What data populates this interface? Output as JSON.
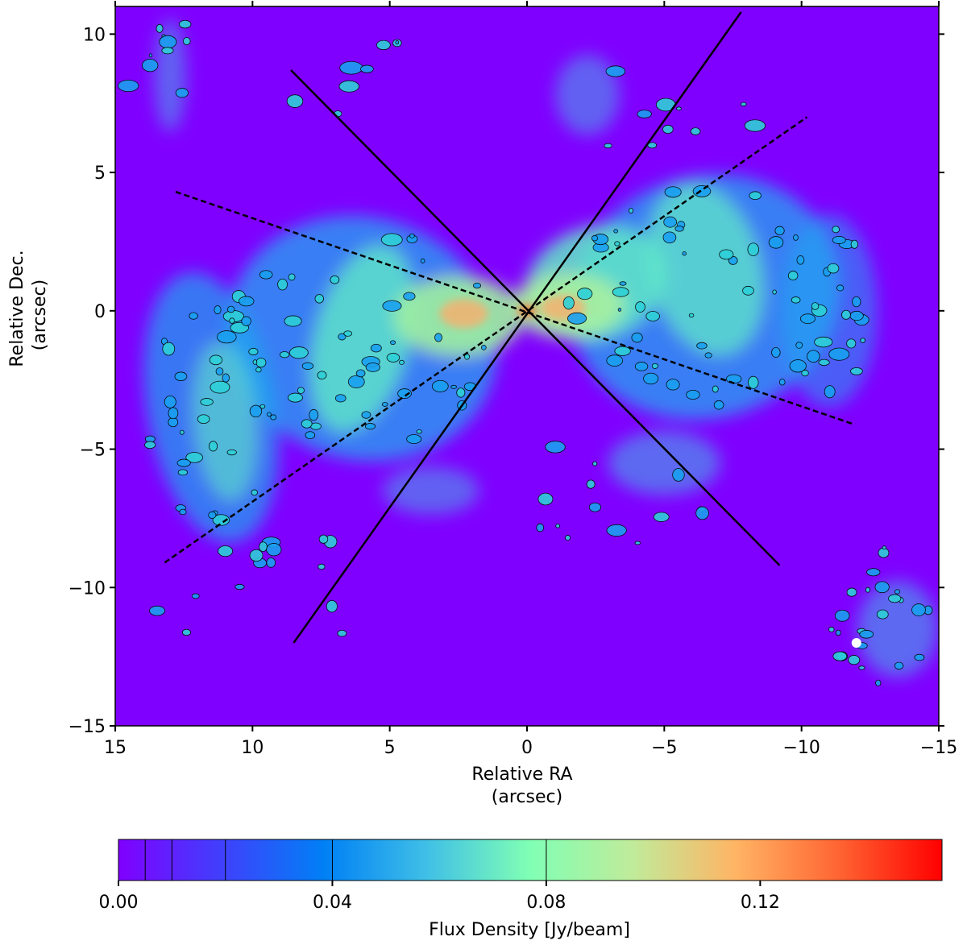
{
  "chart_data": {
    "type": "heatmap",
    "title": "",
    "xlabel": "Relative RA",
    "xlabel_unit": "(arcsec)",
    "ylabel": "Relative Dec.",
    "ylabel_unit": "(arcsec)",
    "xlim": [
      15,
      -15
    ],
    "ylim": [
      -15,
      11
    ],
    "x_ticks": [
      15,
      10,
      5,
      0,
      -5,
      -10,
      -15
    ],
    "x_tick_labels": [
      "15",
      "10",
      "5",
      "0",
      "−5",
      "−10",
      "−15"
    ],
    "y_ticks": [
      10,
      5,
      0,
      -5,
      -10,
      -15
    ],
    "y_tick_labels": [
      "10",
      "5",
      "0",
      "−5",
      "−10",
      "−15"
    ],
    "background_color": "#8000ff",
    "colormap": "rainbow",
    "lines": [
      {
        "style": "solid",
        "x": [
          8.6,
          -9.2
        ],
        "y": [
          8.7,
          -9.2
        ]
      },
      {
        "style": "solid",
        "x": [
          8.5,
          -7.8
        ],
        "y": [
          -12.0,
          10.8
        ]
      },
      {
        "style": "dashed",
        "x": [
          12.8,
          -11.9
        ],
        "y": [
          4.3,
          -4.1
        ]
      },
      {
        "style": "dashed",
        "x": [
          13.2,
          -10.2
        ],
        "y": [
          -9.1,
          7.0
        ]
      }
    ],
    "beam_marker": {
      "x": -12.0,
      "y": -12.0,
      "color": "#ffffff"
    },
    "colorbar": {
      "label": "Flux Density [Jy/beam]",
      "min": 0.0,
      "max": 0.154,
      "ticks": [
        0.0,
        0.04,
        0.08,
        0.12
      ],
      "tick_labels": [
        "0.00",
        "0.04",
        "0.08",
        "0.12"
      ],
      "contour_levels": [
        0.005,
        0.01,
        0.02,
        0.04,
        0.08
      ]
    }
  }
}
